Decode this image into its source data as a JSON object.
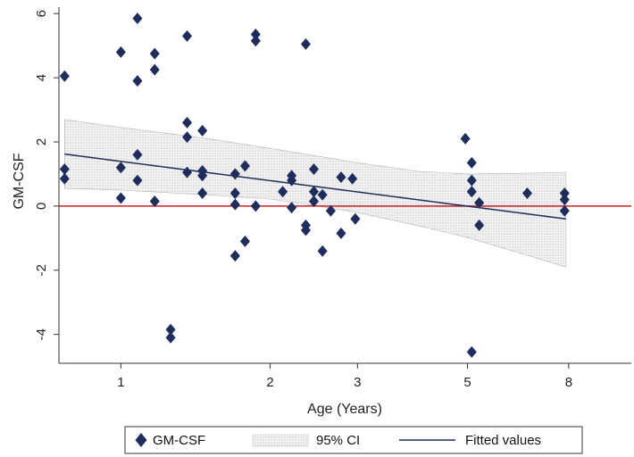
{
  "chart_data": {
    "type": "scatter",
    "xlabel": "Age (Years)",
    "ylabel": "GM-CSF",
    "x_scale": "log",
    "x_ticks": [
      1,
      2,
      3,
      5,
      8
    ],
    "x_tick_labels": [
      "1",
      "2",
      "3",
      "5",
      "8"
    ],
    "y_ticks": [
      -4,
      -2,
      0,
      2,
      4,
      6
    ],
    "y_tick_labels": [
      "-4",
      "-2",
      "0",
      "2",
      "4",
      "6"
    ],
    "xlim": [
      0.75,
      10.7
    ],
    "ylim": [
      -4.9,
      6.2
    ],
    "grid": false,
    "legend_position": "bottom",
    "reference_line": {
      "y": 0,
      "color": "#cc2222"
    },
    "colors": {
      "points": "#1f2d5c",
      "fitted": "#1f2d5c",
      "ci_band": "#bfbfbf"
    },
    "legend": [
      {
        "label": "GM-CSF",
        "symbol": "diamond"
      },
      {
        "label": "95% CI",
        "symbol": "band"
      },
      {
        "label": "Fitted values",
        "symbol": "line"
      }
    ],
    "series": [
      {
        "name": "GM-CSF",
        "type": "scatter",
        "points": [
          [
            0.77,
            4.05
          ],
          [
            0.77,
            1.15
          ],
          [
            0.77,
            0.85
          ],
          [
            1.0,
            4.8
          ],
          [
            1.0,
            1.2
          ],
          [
            1.0,
            0.25
          ],
          [
            1.08,
            5.85
          ],
          [
            1.08,
            3.9
          ],
          [
            1.08,
            1.6
          ],
          [
            1.08,
            0.8
          ],
          [
            1.17,
            4.75
          ],
          [
            1.17,
            4.25
          ],
          [
            1.17,
            0.15
          ],
          [
            1.26,
            -3.85
          ],
          [
            1.26,
            -4.1
          ],
          [
            1.36,
            5.3
          ],
          [
            1.36,
            2.6
          ],
          [
            1.36,
            2.15
          ],
          [
            1.36,
            1.05
          ],
          [
            1.46,
            2.35
          ],
          [
            1.46,
            1.1
          ],
          [
            1.46,
            0.95
          ],
          [
            1.46,
            0.4
          ],
          [
            1.7,
            1.0
          ],
          [
            1.7,
            0.4
          ],
          [
            1.7,
            0.05
          ],
          [
            1.7,
            -1.55
          ],
          [
            1.78,
            1.25
          ],
          [
            1.78,
            -1.1
          ],
          [
            1.87,
            5.35
          ],
          [
            1.87,
            5.15
          ],
          [
            1.87,
            0.0
          ],
          [
            2.12,
            0.45
          ],
          [
            2.21,
            0.95
          ],
          [
            2.21,
            0.8
          ],
          [
            2.21,
            -0.05
          ],
          [
            2.36,
            5.05
          ],
          [
            2.36,
            -0.6
          ],
          [
            2.36,
            -0.75
          ],
          [
            2.45,
            1.15
          ],
          [
            2.45,
            0.45
          ],
          [
            2.45,
            0.15
          ],
          [
            2.55,
            0.35
          ],
          [
            2.55,
            -1.4
          ],
          [
            2.65,
            -0.15
          ],
          [
            2.78,
            0.9
          ],
          [
            2.78,
            -0.85
          ],
          [
            2.93,
            0.85
          ],
          [
            2.97,
            -0.4
          ],
          [
            4.95,
            2.1
          ],
          [
            5.1,
            1.35
          ],
          [
            5.1,
            0.8
          ],
          [
            5.1,
            0.45
          ],
          [
            5.1,
            -4.55
          ],
          [
            5.28,
            0.1
          ],
          [
            5.28,
            -0.6
          ],
          [
            6.6,
            0.4
          ],
          [
            7.85,
            0.4
          ],
          [
            7.85,
            0.2
          ],
          [
            7.85,
            -0.15
          ]
        ]
      },
      {
        "name": "Fitted values",
        "type": "line",
        "x": [
          0.77,
          7.9
        ],
        "y": [
          1.62,
          -0.4
        ]
      },
      {
        "name": "95% CI",
        "type": "band",
        "x": [
          0.77,
          1.0,
          1.5,
          2.0,
          2.5,
          3.0,
          4.0,
          5.0,
          6.5,
          7.9
        ],
        "lower": [
          0.55,
          0.5,
          0.35,
          0.22,
          0.0,
          -0.2,
          -0.62,
          -0.98,
          -1.5,
          -1.9
        ],
        "upper": [
          2.7,
          2.45,
          2.1,
          1.8,
          1.55,
          1.35,
          1.08,
          1.0,
          1.02,
          1.05
        ]
      }
    ]
  }
}
